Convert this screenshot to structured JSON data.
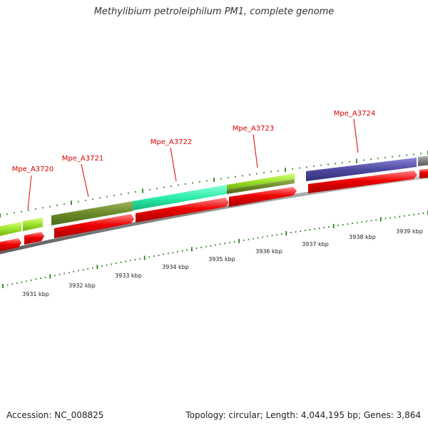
{
  "title": "Methylibium petroleiphilum PM1, complete genome",
  "footer": {
    "accession": "Accession: NC_008825",
    "summary": "Topology: circular; Length: 4,044,195 bp; Genes: 3,864"
  },
  "colors": {
    "backbone": "#8a8a8a",
    "cds": "#ee0000",
    "tick": "#2e7d1e",
    "label": "#dd0000"
  },
  "genes": [
    {
      "id": "mpe-a3720",
      "label": "Mpe_A3720"
    },
    {
      "id": "mpe-a3721",
      "label": "Mpe_A3721"
    },
    {
      "id": "mpe-a3722",
      "label": "Mpe_A3722"
    },
    {
      "id": "mpe-a3723",
      "label": "Mpe_A3723"
    },
    {
      "id": "mpe-a3724",
      "label": "Mpe_A3724"
    }
  ],
  "scale": {
    "unit": "kbp",
    "labels": [
      "3931 kbp",
      "3932 kbp",
      "3933 kbp",
      "3934 kbp",
      "3935 kbp",
      "3936 kbp",
      "3937 kbp",
      "3938 kbp",
      "3939 kbp"
    ]
  }
}
